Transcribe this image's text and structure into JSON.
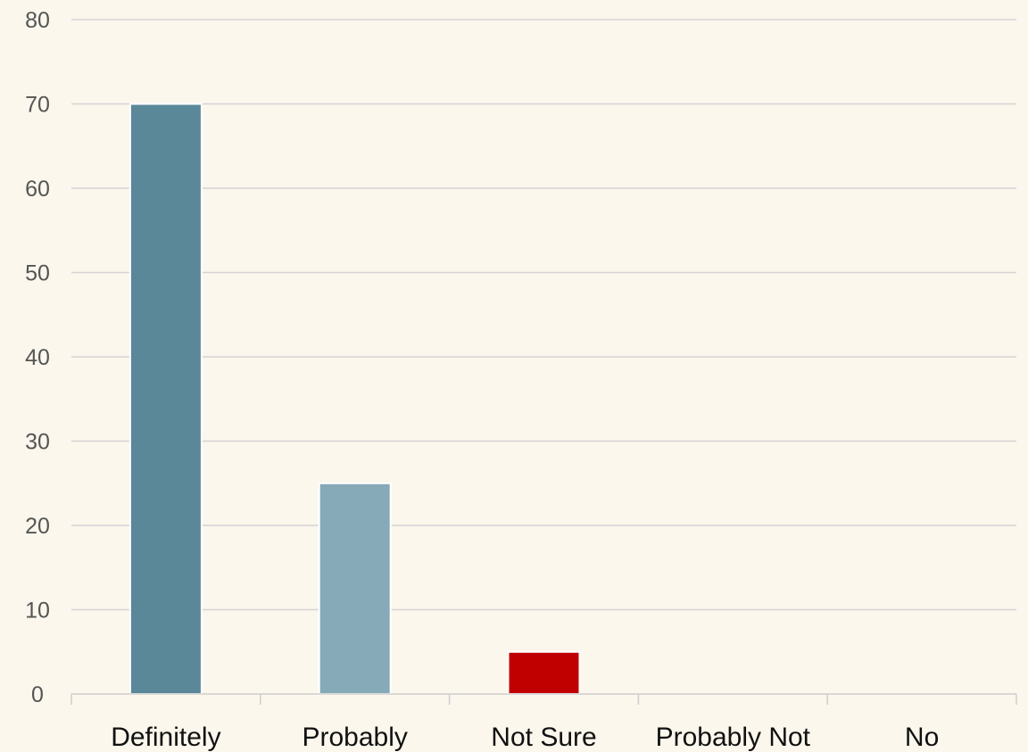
{
  "chart_data": {
    "type": "bar",
    "title": "",
    "xlabel": "",
    "ylabel": "",
    "categories": [
      "Definitely",
      "Probably",
      "Not Sure",
      "Probably Not",
      "No"
    ],
    "values": [
      70,
      25,
      5,
      0,
      0
    ],
    "bar_colors": [
      "#5a8899",
      "#86aab7",
      "#c00000",
      "#86aab7",
      "#86aab7"
    ],
    "ylim": [
      0,
      80
    ],
    "yticks": [
      "0",
      "10",
      "20",
      "30",
      "40",
      "50",
      "60",
      "70",
      "80"
    ],
    "grid": true,
    "legend": "none"
  }
}
